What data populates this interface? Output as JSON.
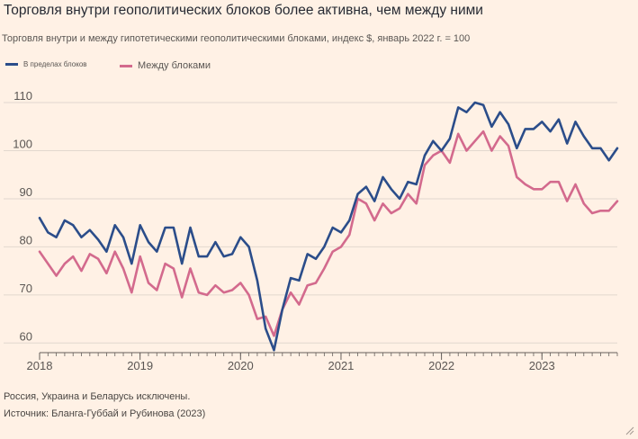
{
  "header": {
    "title": "Торговля внутри геополитических блоков более активна, чем между ними",
    "subtitle": "Торговля внутри и между гипотетическими геополитическими блоками, индекс $, январь 2022 г. = 100"
  },
  "footer": {
    "note": "Россия, Украина и Беларусь исключены.",
    "source": "Источник: Бланга-Губбай и Рубинова (2023)"
  },
  "colors": {
    "background": "#fff1e5",
    "within": "#2b4d8a",
    "between": "#d36a8d",
    "grid": "#e2d8ce",
    "axis": "#66605c"
  },
  "icons": {
    "corner": "resize-grip-icon"
  },
  "chart_data": {
    "type": "line",
    "title": "Торговля внутри геополитических блоков более активна, чем между ними",
    "subtitle": "Торговля внутри и между гипотетическими геополитическими блоками, индекс $, январь 2022 г. = 100",
    "xlabel": "",
    "ylabel": "",
    "ylim": [
      58,
      113
    ],
    "yticks": [
      60,
      70,
      80,
      90,
      100,
      110
    ],
    "xlim": [
      2018.0,
      2023.75
    ],
    "xticks": [
      2018,
      2019,
      2020,
      2021,
      2022,
      2023
    ],
    "xtick_labels": [
      "2018",
      "2019",
      "2020",
      "2021",
      "2022",
      "2023"
    ],
    "grid": true,
    "legend_position": "top-left",
    "series": [
      {
        "name": "В пределах блоков",
        "color": "#2b4d8a",
        "values": [
          86,
          83,
          82,
          85.5,
          84.5,
          82,
          83.5,
          81.5,
          79,
          84.5,
          82,
          76.5,
          84.5,
          81,
          79,
          84,
          84,
          76.5,
          84,
          78,
          78,
          81,
          78,
          78.5,
          82,
          80,
          73,
          63,
          58.5,
          67,
          73.5,
          73,
          78.5,
          77.5,
          80,
          84,
          83,
          85.5,
          91,
          92.5,
          89.5,
          94.5,
          92,
          90,
          93.5,
          93,
          99,
          102,
          100,
          102.5,
          109,
          108,
          110,
          109.5,
          105,
          108,
          105.5,
          100.5,
          104.5,
          104.5,
          106,
          104,
          106.5,
          101.5,
          106,
          103,
          100.5,
          100.5,
          98,
          100.5
        ]
      },
      {
        "name": "Между блоками",
        "color": "#d36a8d",
        "values": [
          79,
          76.5,
          74,
          76.5,
          78,
          75,
          78.5,
          77.5,
          74.5,
          79,
          75.5,
          70.5,
          78,
          72.5,
          71,
          76.5,
          75.5,
          69.5,
          75.5,
          70.5,
          70,
          72,
          70.5,
          71,
          72.5,
          70,
          65,
          65.5,
          61.5,
          67,
          70.5,
          68,
          72,
          72.5,
          75.5,
          79,
          80,
          82.5,
          90,
          89,
          85.5,
          89,
          87,
          88,
          91,
          89,
          97,
          99,
          100,
          97.5,
          103.5,
          100,
          102,
          104,
          100,
          103,
          101,
          94.5,
          93,
          92,
          92,
          93.5,
          93.5,
          89.5,
          93,
          89,
          87,
          87.5,
          87.5,
          89.5
        ]
      }
    ]
  }
}
